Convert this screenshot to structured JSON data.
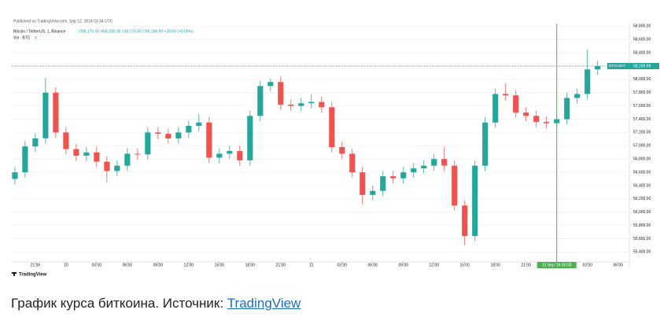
{
  "chart_data": {
    "type": "candlestick",
    "published": "Published on TradingView.com, Sep 12, 2024 03:34 UTC",
    "title": "Bitcoin / TetherUS, 1, Binance",
    "ohlc_legend": "O58,170.00 H58,200.00 L58,170.00 C58,199.99 +30.00 (+0.05%)",
    "volume_legend": "Vol · BTC",
    "volume_legend_value": "4",
    "x": [
      -2,
      -1,
      0,
      1,
      2,
      3,
      4,
      5,
      6,
      7,
      8,
      9,
      10,
      11,
      12,
      13,
      14,
      15,
      16,
      17,
      18,
      19,
      20,
      21,
      22,
      23,
      24,
      25,
      26,
      27,
      28,
      29,
      30,
      31,
      32,
      33,
      34,
      35,
      36,
      37,
      38,
      39,
      40,
      41,
      42,
      43,
      44,
      45,
      46,
      47,
      48,
      49,
      50,
      51,
      52,
      53,
      54,
      55
    ],
    "open": [
      56500,
      56600,
      56990,
      57112,
      57800,
      57200,
      56950,
      56850,
      56900,
      56760,
      56620,
      56700,
      56880,
      56870,
      57200,
      57180,
      57110,
      57200,
      57300,
      57350,
      56820,
      56880,
      56920,
      56780,
      57450,
      57900,
      57960,
      57620,
      57600,
      57640,
      57660,
      57580,
      56980,
      56880,
      56600,
      56260,
      56320,
      56540,
      56510,
      56600,
      56660,
      56700,
      56800,
      56700,
      56100,
      55640,
      56700,
      57350,
      57780,
      57760,
      57500,
      57450,
      57360,
      57340,
      57400,
      57720,
      57780,
      58150
    ],
    "high": [
      56680,
      57070,
      57192,
      58023,
      57880,
      57280,
      57030,
      56980,
      56980,
      56840,
      56780,
      56960,
      56960,
      57280,
      57280,
      57260,
      57280,
      57380,
      57480,
      57430,
      56960,
      57000,
      57000,
      57530,
      57980,
      58010,
      58040,
      57700,
      57720,
      57780,
      57740,
      57660,
      57060,
      56960,
      56680,
      56400,
      56620,
      56620,
      56680,
      56740,
      56780,
      56880,
      56980,
      56780,
      56180,
      56780,
      57430,
      57860,
      57940,
      57840,
      57580,
      57530,
      57440,
      57480,
      57800,
      57860,
      58450,
      58280
    ],
    "low": [
      56420,
      56520,
      56910,
      57032,
      57120,
      56870,
      56770,
      56770,
      56680,
      56450,
      56540,
      56620,
      56790,
      56790,
      57100,
      57030,
      57030,
      57120,
      57220,
      56740,
      56740,
      56800,
      56700,
      56700,
      57370,
      57820,
      57540,
      57520,
      57520,
      57560,
      57500,
      56900,
      56800,
      56520,
      56120,
      56180,
      56240,
      56430,
      56430,
      56520,
      56580,
      56620,
      56620,
      56020,
      55500,
      55560,
      56620,
      57270,
      57680,
      57420,
      57370,
      57280,
      57260,
      57260,
      57320,
      57640,
      57700,
      58070
    ],
    "close": [
      56600,
      56990,
      57112,
      57800,
      57200,
      56950,
      56850,
      56900,
      56760,
      56620,
      56700,
      56880,
      56870,
      57200,
      57180,
      57110,
      57200,
      57300,
      57350,
      56820,
      56880,
      56920,
      56780,
      57450,
      57900,
      57960,
      57620,
      57600,
      57640,
      57660,
      57580,
      56980,
      56880,
      56600,
      56260,
      56320,
      56540,
      56510,
      56600,
      56660,
      56700,
      56800,
      56700,
      56100,
      55640,
      56700,
      57350,
      57780,
      57760,
      57500,
      57450,
      57360,
      57340,
      57400,
      57720,
      57780,
      58150,
      58199.99
    ],
    "up_color": "#26a69a",
    "down_color": "#ef5350",
    "xlim": [
      -2.3,
      58.1
    ],
    "xticks": [
      {
        "value": 0,
        "label": "21:00"
      },
      {
        "value": 3,
        "label": "10"
      },
      {
        "value": 6,
        "label": "03:00"
      },
      {
        "value": 9,
        "label": "06:00"
      },
      {
        "value": 12,
        "label": "09:00"
      },
      {
        "value": 15,
        "label": "12:00"
      },
      {
        "value": 18,
        "label": "15:00"
      },
      {
        "value": 21,
        "label": "18:00"
      },
      {
        "value": 24,
        "label": "21:00"
      },
      {
        "value": 27,
        "label": "11"
      },
      {
        "value": 30,
        "label": "03:00"
      },
      {
        "value": 33,
        "label": "06:00"
      },
      {
        "value": 36,
        "label": "09:00"
      },
      {
        "value": 39,
        "label": "12:00"
      },
      {
        "value": 42,
        "label": "15:00"
      },
      {
        "value": 45,
        "label": "18:00"
      },
      {
        "value": 48,
        "label": "21:00"
      },
      {
        "value": 54,
        "label": "03:00"
      },
      {
        "value": 57,
        "label": "06:00"
      }
    ],
    "crosshair": {
      "value": 51,
      "label": "12 Sep '24   00:00"
    },
    "ylim": [
      55250,
      58840
    ],
    "yticks": [
      {
        "value": 55400,
        "label": "55,400.00"
      },
      {
        "value": 55600,
        "label": "55,600.00"
      },
      {
        "value": 55800,
        "label": "55,800.00"
      },
      {
        "value": 56000,
        "label": "56,000.00"
      },
      {
        "value": 56200,
        "label": "56,200.00"
      },
      {
        "value": 56400,
        "label": "56,400.00"
      },
      {
        "value": 56600,
        "label": "56,600.00"
      },
      {
        "value": 56800,
        "label": "56,800.00"
      },
      {
        "value": 57000,
        "label": "57,000.00"
      },
      {
        "value": 57200,
        "label": "57,200.00"
      },
      {
        "value": 57400,
        "label": "57,400.00"
      },
      {
        "value": 57600,
        "label": "57,600.00"
      },
      {
        "value": 57800,
        "label": "57,800.00"
      },
      {
        "value": 58000,
        "label": "58,000.00"
      },
      {
        "value": 58200,
        "label": "58,200.00"
      },
      {
        "value": 58400,
        "label": "58,400.00"
      },
      {
        "value": 58600,
        "label": "58,600.00"
      },
      {
        "value": 58800,
        "label": "58,800.00"
      }
    ],
    "last_price": {
      "symbol": "BTCUSDT",
      "value": 58199.99,
      "label": "58,199.99"
    },
    "brand": "TradingView"
  },
  "caption": {
    "text": "График курса биткоина. Источник: ",
    "link": "TradingView"
  }
}
